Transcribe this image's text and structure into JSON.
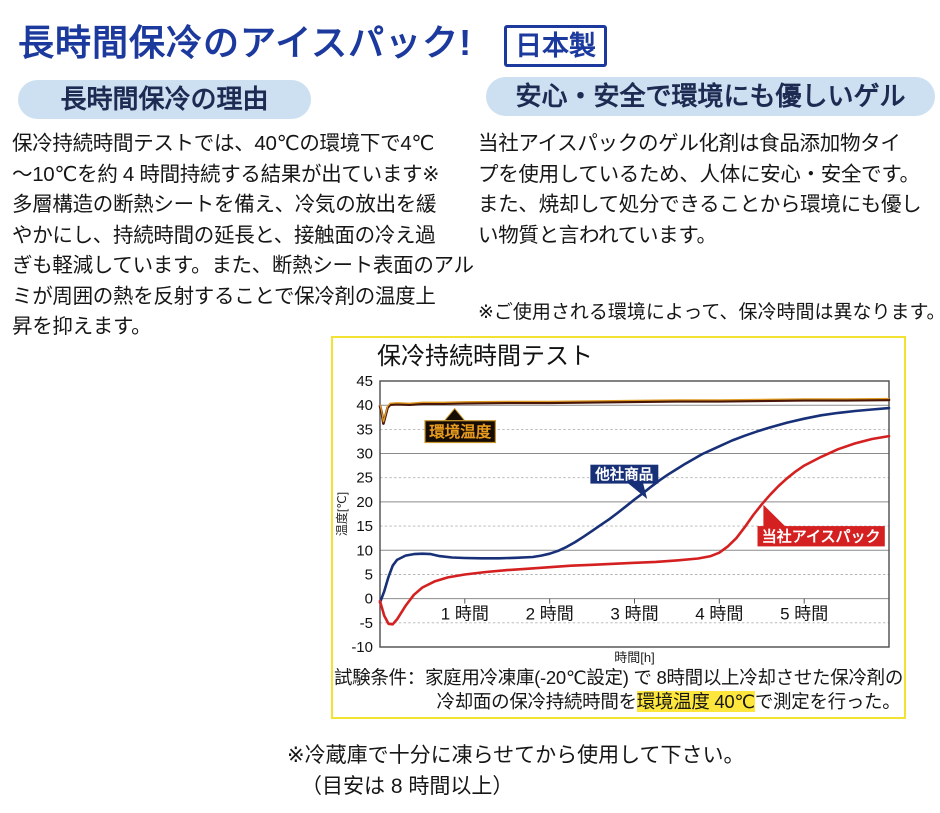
{
  "header": {
    "title": "長時間保冷のアイスパック!",
    "made_in_badge": "日本製"
  },
  "left_section": {
    "heading": "長時間保冷の理由",
    "body": "保冷持続時間テストでは、40℃の環境下で4℃\n〜10℃を約 4 時間持続する結果が出ています※\n多層構造の断熱シートを備え、冷気の放出を緩\nやかにし、持続時間の延長と、接触面の冷え過\nぎも軽減しています。また、断熱シート表面のアル\nミが周囲の熱を反射することで保冷剤の温度上\n昇を抑えます。"
  },
  "right_section": {
    "heading": "安心・安全で環境にも優しいゲル",
    "body": "当社アイスパックのゲル化剤は食品添加物タイ\nプを使用しているため、人体に安心・安全です。\nまた、焼却して処分できることから環境にも優し\nい物質と言われています。",
    "note": "※ご使用される環境によって、保冷時間は異なります。"
  },
  "test_conditions": {
    "line1": "試験条件：家庭用冷凍庫(-20℃設定) で 8時間以上冷却させた保冷剤の",
    "line2_pre": "冷却面の保冷持続時間を",
    "line2_highlight": "環境温度 40℃",
    "line2_post": "で測定を行った。"
  },
  "footer_note": {
    "line1": "※冷蔵庫で十分に凍らせてから使用して下さい。",
    "line2": "（目安は 8 時間以上）"
  },
  "colors": {
    "title_blue": "#1c3a9e",
    "pill_bg": "#cde0f1",
    "chart_border_yellow": "#f2e231",
    "highlight_yellow": "#ffe63c",
    "env_line": "#4a1608",
    "env_line_highlight": "#df9a1f",
    "competitor_line": "#173077",
    "our_line": "#d42020"
  },
  "chart_data": {
    "type": "line",
    "title": "保冷持続時間テスト",
    "xlabel": "時間[h]",
    "ylabel": "温度[℃]",
    "xlim": [
      0,
      6
    ],
    "ylim": [
      -10,
      45
    ],
    "yticks": [
      -10,
      -5,
      0,
      5,
      10,
      15,
      20,
      25,
      30,
      35,
      40,
      45
    ],
    "xticks": [
      {
        "t": 1,
        "label": "1 時間"
      },
      {
        "t": 2,
        "label": "2 時間"
      },
      {
        "t": 3,
        "label": "3 時間"
      },
      {
        "t": 4,
        "label": "4 時間"
      },
      {
        "t": 5,
        "label": "5 時間"
      }
    ],
    "grid": "on",
    "series": [
      {
        "id": "env-temp-line",
        "name": "環境温度",
        "color": "#4a1608",
        "highlight": "#df9a1f",
        "x": [
          0,
          0.02,
          0.04,
          0.06,
          0.09,
          0.12,
          0.2,
          0.35,
          0.5,
          0.75,
          1,
          1.5,
          2,
          2.5,
          3,
          3.5,
          4,
          4.5,
          5,
          5.5,
          6
        ],
        "y": [
          39.8,
          38.5,
          36.2,
          37.5,
          39.5,
          40.1,
          40.2,
          40.1,
          40.3,
          40.3,
          40.4,
          40.5,
          40.5,
          40.6,
          40.7,
          40.8,
          40.8,
          40.9,
          41.0,
          41.0,
          41.1
        ]
      },
      {
        "id": "competitor-product-line",
        "name": "他社商品",
        "color": "#173077",
        "x": [
          0,
          0.05,
          0.1,
          0.15,
          0.2,
          0.3,
          0.4,
          0.5,
          0.6,
          0.7,
          0.85,
          1,
          1.2,
          1.4,
          1.6,
          1.8,
          1.9,
          2,
          2.1,
          2.2,
          2.3,
          2.4,
          2.5,
          2.6,
          2.7,
          2.8,
          2.9,
          3,
          3.1,
          3.2,
          3.3,
          3.4,
          3.5,
          3.6,
          3.7,
          3.8,
          3.9,
          4,
          4.15,
          4.3,
          4.45,
          4.6,
          4.8,
          5,
          5.2,
          5.4,
          5.6,
          5.8,
          6
        ],
        "y": [
          -0.8,
          1.5,
          4.5,
          6.8,
          8,
          8.9,
          9.2,
          9.3,
          9.2,
          8.8,
          8.5,
          8.4,
          8.35,
          8.35,
          8.45,
          8.6,
          8.9,
          9.3,
          9.9,
          10.7,
          11.7,
          12.8,
          14,
          15.2,
          16.4,
          17.7,
          19.1,
          20.5,
          21.8,
          23.2,
          24.5,
          25.7,
          26.8,
          27.9,
          28.9,
          29.9,
          30.7,
          31.5,
          32.7,
          33.7,
          34.6,
          35.4,
          36.4,
          37.2,
          37.9,
          38.4,
          38.8,
          39.1,
          39.4
        ]
      },
      {
        "id": "our-icepack-line",
        "name": "当社アイスパック",
        "color": "#d42020",
        "x": [
          0,
          0.05,
          0.1,
          0.15,
          0.2,
          0.3,
          0.4,
          0.5,
          0.65,
          0.8,
          1,
          1.25,
          1.5,
          1.75,
          2,
          2.25,
          2.5,
          2.75,
          3,
          3.25,
          3.5,
          3.75,
          3.9,
          4,
          4.1,
          4.2,
          4.3,
          4.4,
          4.5,
          4.6,
          4.7,
          4.8,
          4.9,
          5,
          5.2,
          5.4,
          5.6,
          5.8,
          6
        ],
        "y": [
          -0.5,
          -3.5,
          -5.2,
          -5.3,
          -4.3,
          -1.5,
          0.8,
          2.3,
          3.6,
          4.4,
          5,
          5.5,
          5.9,
          6.2,
          6.5,
          6.8,
          7,
          7.2,
          7.4,
          7.6,
          7.9,
          8.3,
          8.8,
          9.5,
          10.8,
          12.5,
          14.8,
          17.3,
          19.5,
          21.5,
          23.3,
          24.9,
          26.3,
          27.5,
          29.3,
          30.9,
          32.1,
          33,
          33.6
        ]
      }
    ],
    "annotations": [
      {
        "id": "env-temp-label",
        "text": "環境温度",
        "x0": 0.53,
        "x1": 1.36,
        "y0": 36.8,
        "y1": 32.3,
        "bg": "#170c04",
        "fg": "#e69b1e",
        "border": "#c9972b",
        "font_size": 15.5,
        "pointer": {
          "apex": [
            0.88,
            39.3
          ],
          "base": [
            0.76,
            36.8,
            1.0,
            36.8
          ]
        }
      },
      {
        "id": "competitor-label",
        "text": "他社商品",
        "x0": 2.48,
        "x1": 3.28,
        "y0": 27.7,
        "y1": 23.8,
        "bg": "#173077",
        "fg": "#ffffff",
        "font_size": 14.5,
        "pointer": {
          "apex": [
            3.15,
            20.6
          ],
          "base": [
            2.92,
            23.9,
            3.1,
            23.9
          ]
        }
      },
      {
        "id": "our-icepack-label",
        "text": "当社アイスパック",
        "x0": 4.45,
        "x1": 5.95,
        "y0": 15.0,
        "y1": 10.8,
        "bg": "#d42020",
        "fg": "#ffffff",
        "font_size": 15,
        "pointer": {
          "apex": [
            4.52,
            19.4
          ],
          "base": [
            4.52,
            14.9,
            4.78,
            14.9
          ]
        }
      }
    ]
  }
}
